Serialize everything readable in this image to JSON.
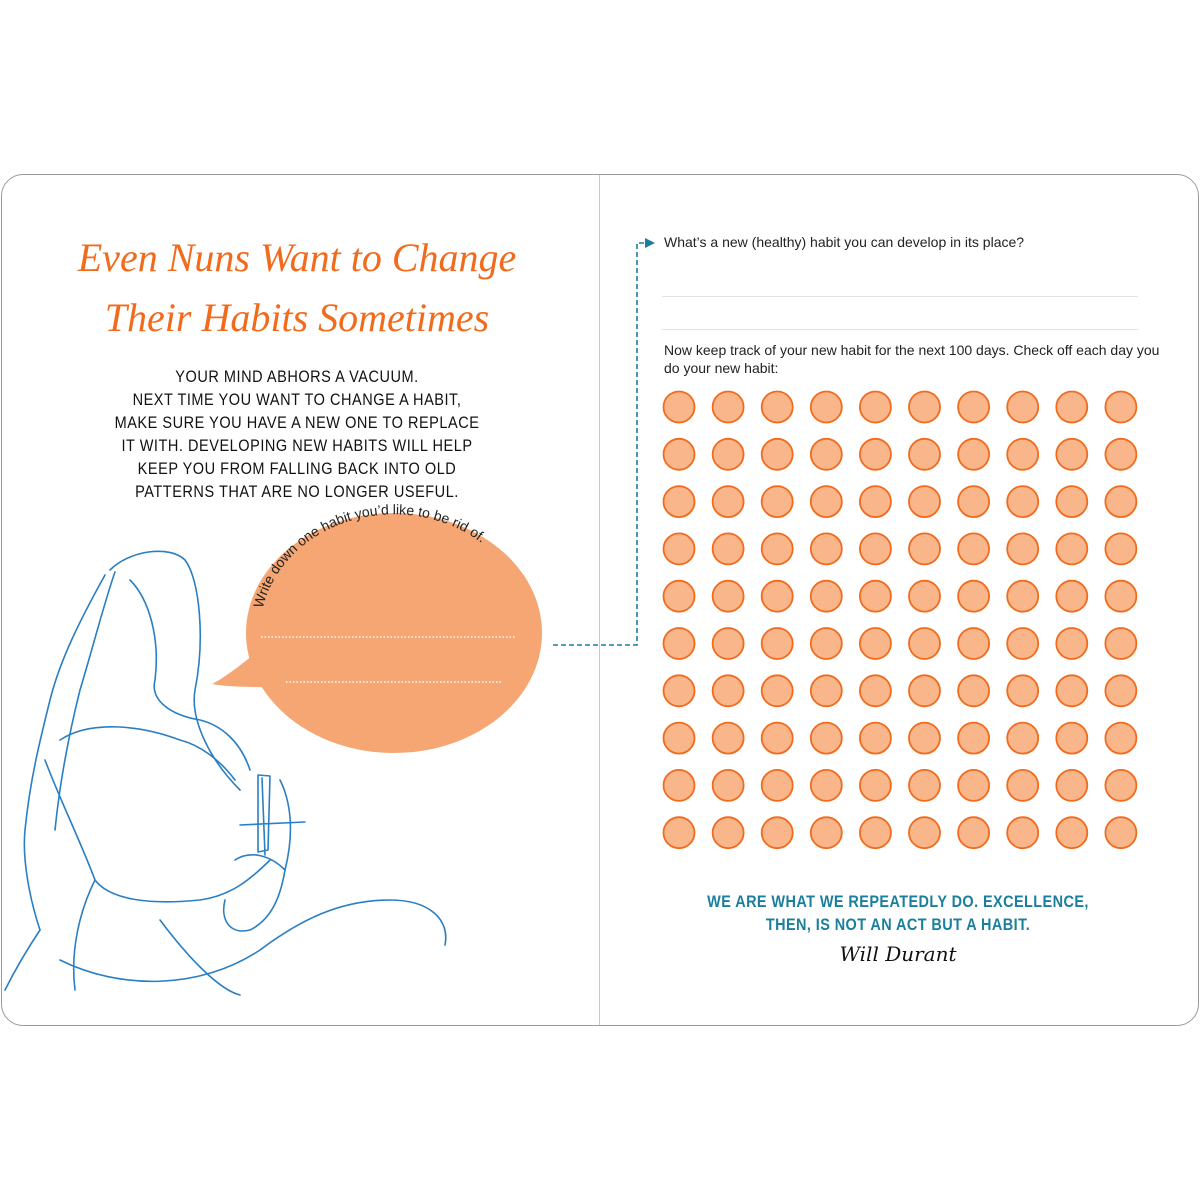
{
  "left_page": {
    "title_line1": "Even Nuns Want to Change",
    "title_line2": "Their Habits Sometimes",
    "body_lines": [
      "YOUR MIND ABHORS A VACUUM.",
      "NEXT TIME YOU WANT TO CHANGE A HABIT,",
      "MAKE SURE YOU HAVE A NEW ONE TO REPLACE",
      "IT WITH. DEVELOPING NEW HABITS WILL HELP",
      "KEEP YOU FROM FALLING BACK INTO OLD",
      "PATTERNS THAT ARE NO LONGER USEFUL."
    ],
    "bubble_prompt": "Write down one habit you’d like to be rid of."
  },
  "right_page": {
    "question": "What’s a new (healthy) habit you can develop in its place?",
    "tracker_prompt": "Now keep track of your new habit for the next 100 days. Check off each day you do your new habit:",
    "tracker": {
      "rows": 10,
      "cols": 10,
      "checked": 0
    },
    "quote_line1": "WE ARE WHAT WE REPEATEDLY DO. EXCELLENCE,",
    "quote_line2": "THEN, IS NOT AN ACT BUT A HABIT.",
    "quote_author": "Will Durant"
  },
  "colors": {
    "accent_orange": "#f26b1d",
    "circle_fill": "#f8b68a",
    "bubble_fill": "#f5a673",
    "teal": "#1a7f9c",
    "nun_line": "#2a7fc4"
  }
}
